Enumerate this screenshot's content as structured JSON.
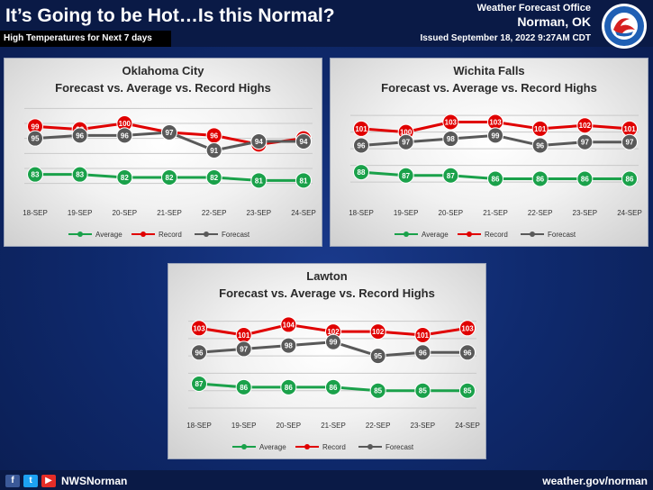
{
  "header": {
    "title": "It’s Going to be Hot…Is this Normal?",
    "subtitle": "High Temperatures for Next 7 days",
    "office_line1": "Weather Forecast Office",
    "office_line2": "Norman, OK",
    "issued": "Issued September 18, 2022 9:27AM CDT",
    "logo_text": "NATIONAL WEATHER SERVICE"
  },
  "footer": {
    "handle": "NWSNorman",
    "website": "weather.gov/norman",
    "icons": [
      "facebook-icon",
      "twitter-icon",
      "youtube-icon"
    ]
  },
  "colors": {
    "average": "#1aa14a",
    "record": "#e00000",
    "forecast": "#595959"
  },
  "chart_data": [
    {
      "type": "line",
      "title": "Oklahoma  City",
      "subtitle": "Forecast vs. Average vs. Record Highs",
      "categories": [
        "18-SEP",
        "19-SEP",
        "20-SEP",
        "21-SEP",
        "22-SEP",
        "23-SEP",
        "24-SEP"
      ],
      "series": [
        {
          "name": "Average",
          "values": [
            83,
            83,
            82,
            82,
            82,
            81,
            81
          ]
        },
        {
          "name": "Record",
          "values": [
            99,
            98,
            100,
            97,
            96,
            93,
            95
          ]
        },
        {
          "name": "Forecast",
          "values": [
            95,
            96,
            96,
            97,
            91,
            94,
            94
          ]
        }
      ],
      "ylim": [
        76,
        106
      ],
      "grid": true,
      "legend": "bottom"
    },
    {
      "type": "line",
      "title": "Wichita Falls",
      "subtitle": "Forecast vs. Average vs. Record Highs",
      "categories": [
        "18-SEP",
        "19-SEP",
        "20-SEP",
        "21-SEP",
        "22-SEP",
        "23-SEP",
        "24-SEP"
      ],
      "series": [
        {
          "name": "Average",
          "values": [
            88,
            87,
            87,
            86,
            86,
            86,
            86
          ]
        },
        {
          "name": "Record",
          "values": [
            101,
            100,
            103,
            103,
            101,
            102,
            101
          ]
        },
        {
          "name": "Forecast",
          "values": [
            96,
            97,
            98,
            99,
            96,
            97,
            97
          ]
        }
      ],
      "ylim": [
        81,
        108
      ],
      "grid": true,
      "legend": "bottom"
    },
    {
      "type": "line",
      "title": "Lawton",
      "subtitle": "Forecast vs. Average vs. Record Highs",
      "categories": [
        "18-SEP",
        "19-SEP",
        "20-SEP",
        "21-SEP",
        "22-SEP",
        "23-SEP",
        "24-SEP"
      ],
      "series": [
        {
          "name": "Average",
          "values": [
            87,
            86,
            86,
            86,
            85,
            85,
            85
          ]
        },
        {
          "name": "Record",
          "values": [
            103,
            101,
            104,
            102,
            102,
            101,
            103
          ]
        },
        {
          "name": "Forecast",
          "values": [
            96,
            97,
            98,
            99,
            95,
            96,
            96
          ]
        }
      ],
      "ylim": [
        80,
        108
      ],
      "grid": true,
      "legend": "bottom"
    }
  ]
}
